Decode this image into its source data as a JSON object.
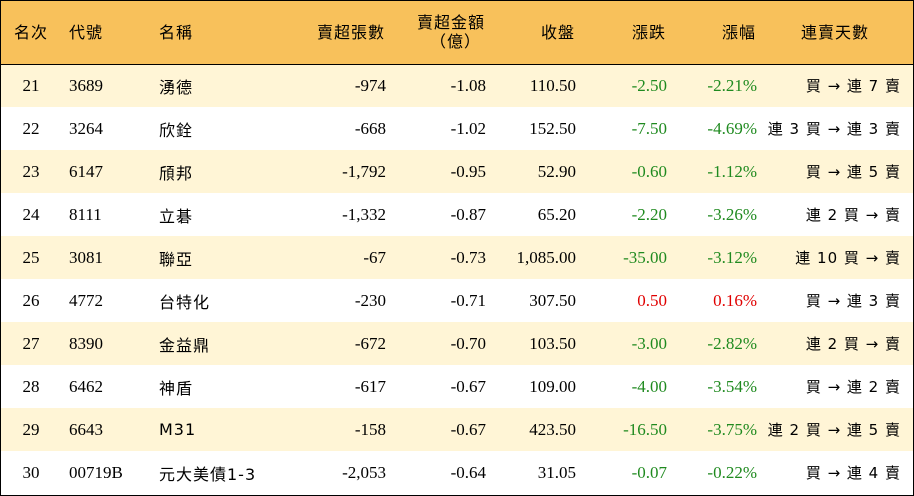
{
  "header": {
    "rank": "名次",
    "code": "代號",
    "name": "名稱",
    "sell_volume": "賣超張數",
    "sell_amount_line1": "賣超金額",
    "sell_amount_line2": "（億）",
    "close": "收盤",
    "change": "漲跌",
    "change_pct": "漲幅",
    "streak": "連賣天數"
  },
  "colors": {
    "header_bg": "#F8C15B",
    "odd_row_bg": "#FFF5D6",
    "even_row_bg": "#FFFFFF",
    "down": "#1F8A1F",
    "up": "#E00000"
  },
  "rows": [
    {
      "rank": "21",
      "code": "3689",
      "name": "湧德",
      "sell_volume": "-974",
      "sell_amount": "-1.08",
      "close": "110.50",
      "change": "-2.50",
      "change_pct": "-2.21%",
      "streak": "買 → 連 7 賣",
      "direction": "down"
    },
    {
      "rank": "22",
      "code": "3264",
      "name": "欣銓",
      "sell_volume": "-668",
      "sell_amount": "-1.02",
      "close": "152.50",
      "change": "-7.50",
      "change_pct": "-4.69%",
      "streak": "連 3 買 → 連 3 賣",
      "direction": "down"
    },
    {
      "rank": "23",
      "code": "6147",
      "name": "頎邦",
      "sell_volume": "-1,792",
      "sell_amount": "-0.95",
      "close": "52.90",
      "change": "-0.60",
      "change_pct": "-1.12%",
      "streak": "買 → 連 5 賣",
      "direction": "down"
    },
    {
      "rank": "24",
      "code": "8111",
      "name": "立碁",
      "sell_volume": "-1,332",
      "sell_amount": "-0.87",
      "close": "65.20",
      "change": "-2.20",
      "change_pct": "-3.26%",
      "streak": "連 2 買 → 賣",
      "direction": "down"
    },
    {
      "rank": "25",
      "code": "3081",
      "name": "聯亞",
      "sell_volume": "-67",
      "sell_amount": "-0.73",
      "close": "1,085.00",
      "change": "-35.00",
      "change_pct": "-3.12%",
      "streak": "連 10 買 → 賣",
      "direction": "down"
    },
    {
      "rank": "26",
      "code": "4772",
      "name": "台特化",
      "sell_volume": "-230",
      "sell_amount": "-0.71",
      "close": "307.50",
      "change": "0.50",
      "change_pct": "0.16%",
      "streak": "買 → 連 3 賣",
      "direction": "up"
    },
    {
      "rank": "27",
      "code": "8390",
      "name": "金益鼎",
      "sell_volume": "-672",
      "sell_amount": "-0.70",
      "close": "103.50",
      "change": "-3.00",
      "change_pct": "-2.82%",
      "streak": "連 2 買 → 賣",
      "direction": "down"
    },
    {
      "rank": "28",
      "code": "6462",
      "name": "神盾",
      "sell_volume": "-617",
      "sell_amount": "-0.67",
      "close": "109.00",
      "change": "-4.00",
      "change_pct": "-3.54%",
      "streak": "買 → 連 2 賣",
      "direction": "down"
    },
    {
      "rank": "29",
      "code": "6643",
      "name": "M31",
      "sell_volume": "-158",
      "sell_amount": "-0.67",
      "close": "423.50",
      "change": "-16.50",
      "change_pct": "-3.75%",
      "streak": "連 2 買 → 連 5 賣",
      "direction": "down"
    },
    {
      "rank": "30",
      "code": "00719B",
      "name": "元大美債1-3",
      "sell_volume": "-2,053",
      "sell_amount": "-0.64",
      "close": "31.05",
      "change": "-0.07",
      "change_pct": "-0.22%",
      "streak": "買 → 連 4 賣",
      "direction": "down"
    }
  ]
}
